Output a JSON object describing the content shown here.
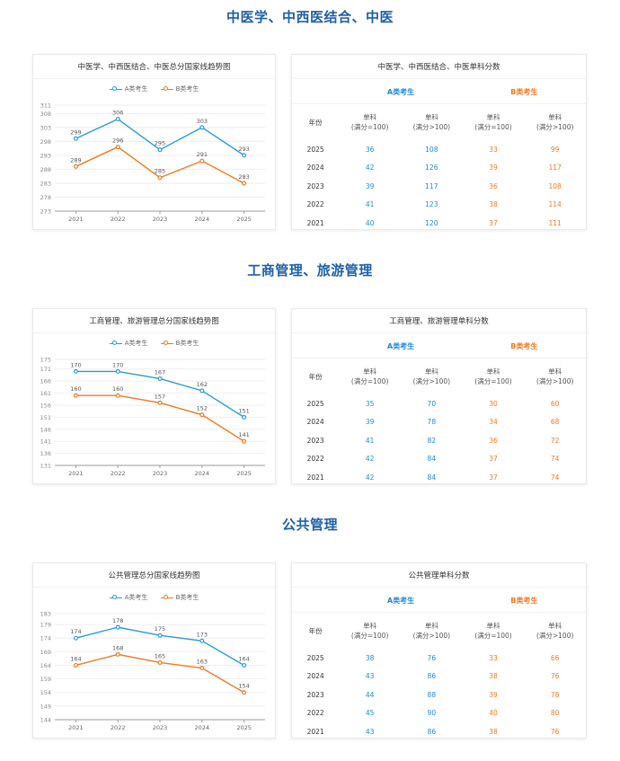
{
  "sections": [
    {
      "heading": "中医学、中西医结合、中医",
      "chart_title": "中医学、中西医结合、中医总分国家线趋势图",
      "table_title": "中医学、中西医结合、中医单科分数",
      "table": {
        "group_a": "A类考生",
        "group_b": "B类考生",
        "year_header": "年份",
        "col_headers": [
          [
            "单科",
            "(满分=100)"
          ],
          [
            "单科",
            "(满分>100)"
          ],
          [
            "单科",
            "(满分=100)"
          ],
          [
            "单科",
            "(满分>100)"
          ]
        ],
        "rows": [
          [
            "2025",
            "36",
            "108",
            "33",
            "99"
          ],
          [
            "2024",
            "42",
            "126",
            "39",
            "117"
          ],
          [
            "2023",
            "39",
            "117",
            "36",
            "108"
          ],
          [
            "2022",
            "41",
            "123",
            "38",
            "114"
          ],
          [
            "2021",
            "40",
            "120",
            "37",
            "111"
          ]
        ]
      }
    },
    {
      "heading": "工商管理、旅游管理",
      "chart_title": "工商管理、旅游管理总分国家线趋势图",
      "table_title": "工商管理、旅游管理单科分数",
      "table": {
        "group_a": "A类考生",
        "group_b": "B类考生",
        "year_header": "年份",
        "col_headers": [
          [
            "单科",
            "(满分=100)"
          ],
          [
            "单科",
            "(满分>100)"
          ],
          [
            "单科",
            "(满分=100)"
          ],
          [
            "单科",
            "(满分>100)"
          ]
        ],
        "rows": [
          [
            "2025",
            "35",
            "70",
            "30",
            "60"
          ],
          [
            "2024",
            "39",
            "78",
            "34",
            "68"
          ],
          [
            "2023",
            "41",
            "82",
            "36",
            "72"
          ],
          [
            "2022",
            "42",
            "84",
            "37",
            "74"
          ],
          [
            "2021",
            "42",
            "84",
            "37",
            "74"
          ]
        ]
      }
    },
    {
      "heading": "公共管理",
      "chart_title": "公共管理总分国家线趋势图",
      "table_title": "公共管理单科分数",
      "table": {
        "group_a": "A类考生",
        "group_b": "B类考生",
        "year_header": "年份",
        "col_headers": [
          [
            "单科",
            "(满分=100)"
          ],
          [
            "单科",
            "(满分>100)"
          ],
          [
            "单科",
            "(满分=100)"
          ],
          [
            "单科",
            "(满分>100)"
          ]
        ],
        "rows": [
          [
            "2025",
            "38",
            "76",
            "33",
            "66"
          ],
          [
            "2024",
            "43",
            "86",
            "38",
            "76"
          ],
          [
            "2023",
            "44",
            "88",
            "39",
            "78"
          ],
          [
            "2022",
            "45",
            "90",
            "40",
            "80"
          ],
          [
            "2021",
            "43",
            "86",
            "38",
            "76"
          ]
        ]
      }
    }
  ],
  "chart_data": [
    {
      "type": "line",
      "title": "中医学、中西医结合、中医总分国家线趋势图",
      "categories": [
        "2021",
        "2022",
        "2023",
        "2024",
        "2025"
      ],
      "yticks": [
        311,
        308,
        303,
        298,
        293,
        288,
        283,
        278,
        273
      ],
      "ylim": [
        273,
        311
      ],
      "series": [
        {
          "name": "A类考生",
          "values": [
            299,
            306,
            295,
            303,
            293
          ],
          "color": "#2b9bd6"
        },
        {
          "name": "B类考生",
          "values": [
            289,
            296,
            285,
            291,
            283
          ],
          "color": "#ee7a22"
        }
      ],
      "legend": "top-center",
      "grid": true
    },
    {
      "type": "line",
      "title": "工商管理、旅游管理总分国家线趋势图",
      "categories": [
        "2021",
        "2022",
        "2023",
        "2024",
        "2025"
      ],
      "yticks": [
        175,
        171,
        166,
        161,
        156,
        151,
        146,
        141,
        136,
        131
      ],
      "ylim": [
        131,
        175
      ],
      "series": [
        {
          "name": "A类考生",
          "values": [
            170,
            170,
            167,
            162,
            151
          ],
          "color": "#2b9bd6"
        },
        {
          "name": "B类考生",
          "values": [
            160,
            160,
            157,
            152,
            141
          ],
          "color": "#ee7a22"
        }
      ],
      "legend": "top-center",
      "grid": true
    },
    {
      "type": "line",
      "title": "公共管理总分国家线趋势图",
      "categories": [
        "2021",
        "2022",
        "2023",
        "2024",
        "2025"
      ],
      "yticks": [
        183,
        179,
        174,
        169,
        164,
        159,
        154,
        149,
        144
      ],
      "ylim": [
        144,
        183
      ],
      "series": [
        {
          "name": "A类考生",
          "values": [
            174,
            178,
            175,
            173,
            164
          ],
          "color": "#2b9bd6"
        },
        {
          "name": "B类考生",
          "values": [
            164,
            168,
            165,
            163,
            154
          ],
          "color": "#ee7a22"
        }
      ],
      "legend": "top-center",
      "grid": true
    }
  ]
}
